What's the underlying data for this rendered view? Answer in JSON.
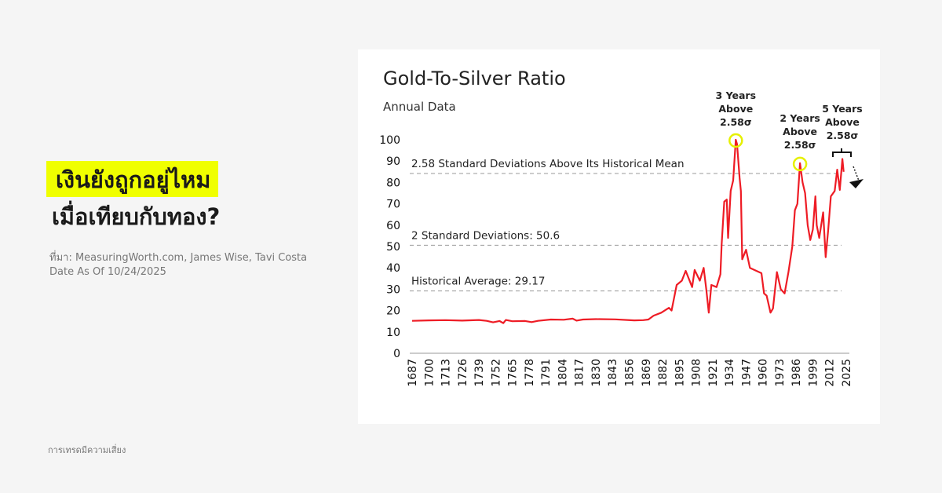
{
  "headline": {
    "line1": "เงินยังถูกอยู่ไหม",
    "line2": "เมื่อเทียบกับทอง?"
  },
  "source": {
    "line1": "ที่มา: MeasuringWorth.com, James Wise, Tavi Costa",
    "line2": "Date As Of 10/24/2025"
  },
  "footer": "การเทรดมีความเสี่ยง",
  "colors": {
    "highlight": "#f0ff00",
    "series": "#ee1c25",
    "circle": "#e6f000",
    "background": "#f5f5f5"
  },
  "chart_data": {
    "type": "line",
    "title": "Gold-To-Silver Ratio",
    "subtitle": "Annual Data",
    "xlim": [
      1687,
      2025
    ],
    "ylim": [
      0,
      100
    ],
    "x_ticks": [
      1687,
      1700,
      1713,
      1726,
      1739,
      1752,
      1765,
      1778,
      1791,
      1804,
      1817,
      1830,
      1843,
      1856,
      1869,
      1882,
      1895,
      1908,
      1921,
      1934,
      1947,
      1960,
      1973,
      1986,
      1999,
      2012,
      2025
    ],
    "y_ticks": [
      0,
      10,
      20,
      30,
      40,
      50,
      60,
      70,
      80,
      90,
      100
    ],
    "grid": false,
    "reference_lines": [
      {
        "value": 84.2,
        "label": "2.58 Standard Deviations Above Its Historical Mean"
      },
      {
        "value": 50.6,
        "label": "2 Standard Deviations: 50.6"
      },
      {
        "value": 29.17,
        "label": "Historical Average: 29.17"
      }
    ],
    "annotations": [
      {
        "year": 1939,
        "value": 100,
        "lines": [
          "3 Years",
          "Above",
          "2.58σ"
        ]
      },
      {
        "year": 1989,
        "value": 89,
        "lines": [
          "2 Years",
          "Above",
          "2.58σ"
        ]
      },
      {
        "year": 2022,
        "value": 91,
        "lines": [
          "5 Years",
          "Above",
          "2.58σ"
        ]
      }
    ],
    "series": [
      {
        "x": [
          1687,
          1700,
          1713,
          1726,
          1739,
          1745,
          1750,
          1755,
          1758,
          1760,
          1765,
          1775,
          1780,
          1785,
          1795,
          1805,
          1812,
          1815,
          1820,
          1830,
          1845,
          1860,
          1867,
          1871,
          1875,
          1881,
          1887,
          1889,
          1893,
          1897,
          1900,
          1905,
          1907,
          1911,
          1914,
          1916,
          1918,
          1920,
          1924,
          1927,
          1928,
          1930,
          1932,
          1933,
          1935,
          1937,
          1939,
          1940,
          1942,
          1943,
          1944,
          1947,
          1950,
          1955,
          1959,
          1961,
          1963,
          1966,
          1968,
          1971,
          1974,
          1977,
          1980,
          1983,
          1985,
          1987,
          1989,
          1991,
          1993,
          1995,
          1997,
          1999,
          2001,
          2002,
          2004,
          2007,
          2009,
          2011,
          2013,
          2016,
          2018,
          2020,
          2022,
          2023
        ],
        "y": [
          15.2,
          15.4,
          15.5,
          15.3,
          15.6,
          15.2,
          14.5,
          15.1,
          14.1,
          15.6,
          15.0,
          15.1,
          14.6,
          15.2,
          15.8,
          15.7,
          16.2,
          15.3,
          15.8,
          16.0,
          15.9,
          15.4,
          15.5,
          15.8,
          17.6,
          19.0,
          21.3,
          20.0,
          32,
          34,
          38.6,
          31,
          39,
          34,
          40,
          30,
          19,
          32,
          31,
          37,
          51,
          71,
          72,
          54,
          76,
          81,
          100,
          98,
          82,
          76,
          44,
          48.5,
          40,
          38.6,
          37.5,
          28,
          27,
          19,
          21,
          38,
          30,
          28,
          38,
          50,
          67,
          70,
          89,
          80,
          75,
          60,
          53,
          58,
          73.5,
          60,
          54,
          66,
          45,
          58,
          73.5,
          76,
          86,
          76.5,
          91,
          85
        ]
      }
    ]
  }
}
